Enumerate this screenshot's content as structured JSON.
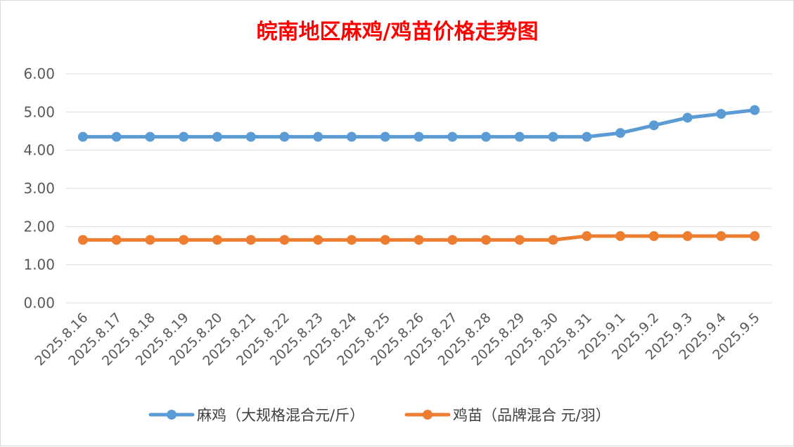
{
  "chart_data": {
    "type": "line",
    "title": "皖南地区麻鸡/鸡苗价格走势图",
    "categories": [
      "2025.8.16",
      "2025.8.17",
      "2025.8.18",
      "2025.8.19",
      "2025.8.20",
      "2025.8.21",
      "2025.8.22",
      "2025.8.23",
      "2025.8.24",
      "2025.8.25",
      "2025.8.26",
      "2025.8.27",
      "2025.8.28",
      "2025.8.29",
      "2025.8.30",
      "2025.8.31",
      "2025.9.1",
      "2025.9.2",
      "2025.9.3",
      "2025.9.4",
      "2025.9.5"
    ],
    "series": [
      {
        "name": "麻鸡（大规格混合元/斤）",
        "color": "#5b9bd5",
        "values": [
          4.35,
          4.35,
          4.35,
          4.35,
          4.35,
          4.35,
          4.35,
          4.35,
          4.35,
          4.35,
          4.35,
          4.35,
          4.35,
          4.35,
          4.35,
          4.35,
          4.45,
          4.65,
          4.85,
          4.95,
          5.05
        ]
      },
      {
        "name": "鸡苗（品牌混合 元/羽）",
        "color": "#ed7d31",
        "values": [
          1.65,
          1.65,
          1.65,
          1.65,
          1.65,
          1.65,
          1.65,
          1.65,
          1.65,
          1.65,
          1.65,
          1.65,
          1.65,
          1.65,
          1.65,
          1.75,
          1.75,
          1.75,
          1.75,
          1.75,
          1.75
        ]
      }
    ],
    "ylim": [
      0,
      6
    ],
    "yticks": [
      "0.00",
      "1.00",
      "2.00",
      "3.00",
      "4.00",
      "5.00",
      "6.00"
    ],
    "grid": true,
    "legend": "bottom",
    "xlabel": "",
    "ylabel": ""
  }
}
